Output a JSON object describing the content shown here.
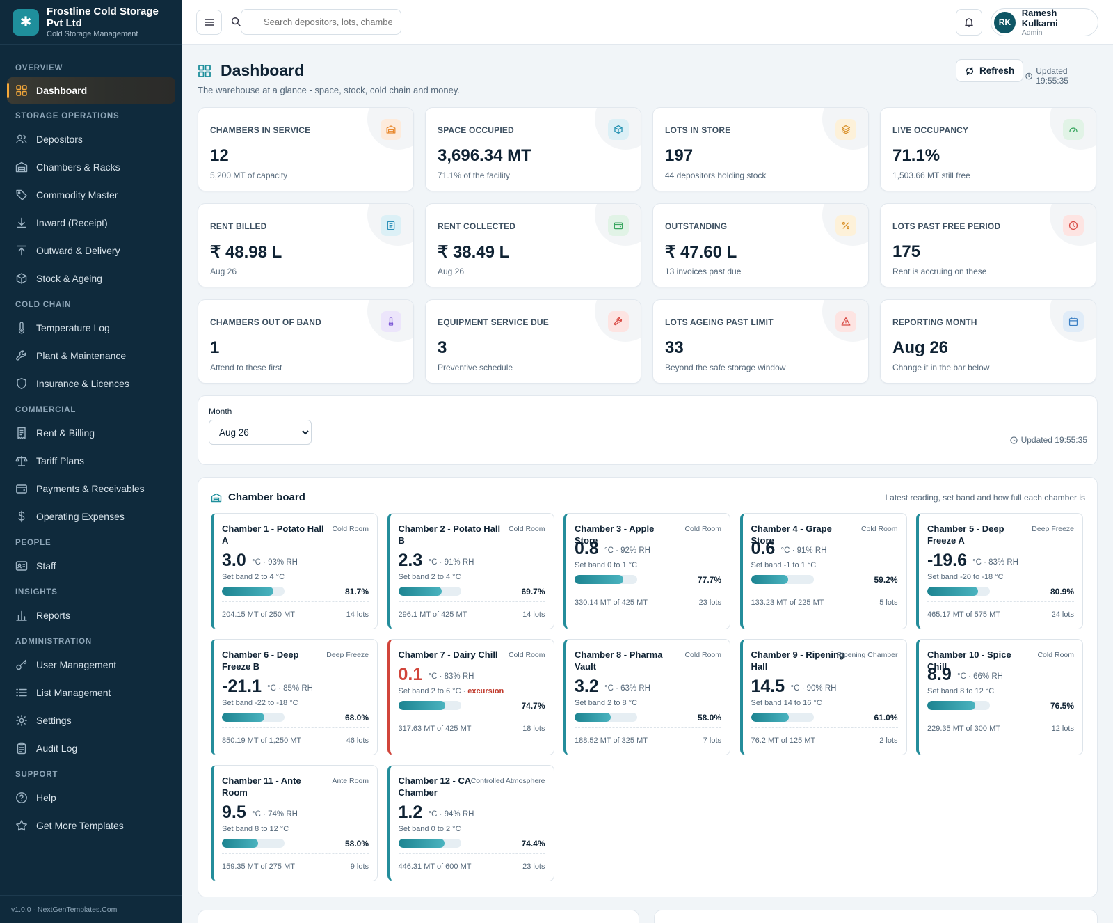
{
  "brand": {
    "name": "Frostline Cold Storage Pvt Ltd",
    "subtitle": "Cold Storage Management",
    "logo_icon": "snowflake-icon"
  },
  "sidebar": {
    "sections": [
      {
        "title": "OVERVIEW",
        "items": [
          {
            "label": "Dashboard",
            "icon": "grid-icon",
            "active": true
          }
        ]
      },
      {
        "title": "STORAGE OPERATIONS",
        "items": [
          {
            "label": "Depositors",
            "icon": "users-icon"
          },
          {
            "label": "Chambers & Racks",
            "icon": "warehouse-icon"
          },
          {
            "label": "Commodity Master",
            "icon": "tag-icon"
          },
          {
            "label": "Inward (Receipt)",
            "icon": "arrow-down-icon"
          },
          {
            "label": "Outward & Delivery",
            "icon": "arrow-up-icon"
          },
          {
            "label": "Stock & Ageing",
            "icon": "cube-icon"
          }
        ]
      },
      {
        "title": "COLD CHAIN",
        "items": [
          {
            "label": "Temperature Log",
            "icon": "thermometer-icon"
          },
          {
            "label": "Plant & Maintenance",
            "icon": "wrench-icon"
          },
          {
            "label": "Insurance & Licences",
            "icon": "shield-icon"
          }
        ]
      },
      {
        "title": "COMMERCIAL",
        "items": [
          {
            "label": "Rent & Billing",
            "icon": "receipt-icon"
          },
          {
            "label": "Tariff Plans",
            "icon": "scale-icon"
          },
          {
            "label": "Payments & Receivables",
            "icon": "wallet-icon"
          },
          {
            "label": "Operating Expenses",
            "icon": "dollar-icon"
          }
        ]
      },
      {
        "title": "PEOPLE",
        "items": [
          {
            "label": "Staff",
            "icon": "id-card-icon"
          }
        ]
      },
      {
        "title": "INSIGHTS",
        "items": [
          {
            "label": "Reports",
            "icon": "bar-chart-icon"
          }
        ]
      },
      {
        "title": "ADMINISTRATION",
        "items": [
          {
            "label": "User Management",
            "icon": "key-icon"
          },
          {
            "label": "List Management",
            "icon": "list-icon"
          },
          {
            "label": "Settings",
            "icon": "gear-icon"
          },
          {
            "label": "Audit Log",
            "icon": "clipboard-icon"
          }
        ]
      },
      {
        "title": "SUPPORT",
        "items": [
          {
            "label": "Help",
            "icon": "help-icon"
          },
          {
            "label": "Get More Templates",
            "icon": "star-icon"
          }
        ]
      }
    ],
    "footer": "v1.0.0 · NextGenTemplates.Com"
  },
  "topbar": {
    "search_placeholder": "Search depositors, lots, chambers",
    "user_name": "Ramesh Kulkarni",
    "user_role": "Admin",
    "user_initials": "RK"
  },
  "page": {
    "title": "Dashboard",
    "subtitle": "The warehouse at a glance - space, stock, cold chain and money.",
    "refresh_label": "Refresh",
    "updated": "Updated 19:55:35"
  },
  "kpis": [
    {
      "label": "CHAMBERS IN SERVICE",
      "value": "12",
      "note": "5,200 MT of capacity",
      "icon": "warehouse-icon",
      "color": "#e8892f",
      "bg": "#fdebdc"
    },
    {
      "label": "SPACE OCCUPIED",
      "value": "3,696.34 MT",
      "note": "71.1% of the facility",
      "icon": "cube-icon",
      "color": "#1f8fb0",
      "bg": "#dcf0f6"
    },
    {
      "label": "LOTS IN STORE",
      "value": "197",
      "note": "44 depositors holding stock",
      "icon": "layers-icon",
      "color": "#d9912a",
      "bg": "#fdf1d9"
    },
    {
      "label": "LIVE OCCUPANCY",
      "value": "71.1%",
      "note": "1,503.66 MT still free",
      "icon": "gauge-icon",
      "color": "#3aa760",
      "bg": "#e1f3e6"
    },
    {
      "label": "RENT BILLED",
      "value": "₹ 48.98 L",
      "note": "Aug 26",
      "icon": "invoice-icon",
      "color": "#2b8fb8",
      "bg": "#dcf0f6"
    },
    {
      "label": "RENT COLLECTED",
      "value": "₹ 38.49 L",
      "note": "Aug 26",
      "icon": "wallet-icon",
      "color": "#3aa760",
      "bg": "#e1f3e6"
    },
    {
      "label": "OUTSTANDING",
      "value": "₹ 47.60 L",
      "note": "13 invoices past due",
      "icon": "percent-icon",
      "color": "#d9912a",
      "bg": "#fdf1d9"
    },
    {
      "label": "LOTS PAST FREE PERIOD",
      "value": "175",
      "note": "Rent is accruing on these",
      "icon": "clock-icon",
      "color": "#d84a44",
      "bg": "#fde4e2"
    },
    {
      "label": "CHAMBERS OUT OF BAND",
      "value": "1",
      "note": "Attend to these first",
      "icon": "thermometer-icon",
      "color": "#7e5bd6",
      "bg": "#ece5fb"
    },
    {
      "label": "EQUIPMENT SERVICE DUE",
      "value": "3",
      "note": "Preventive schedule",
      "icon": "wrench-icon",
      "color": "#d84a44",
      "bg": "#fde4e2"
    },
    {
      "label": "LOTS AGEING PAST LIMIT",
      "value": "33",
      "note": "Beyond the safe storage window",
      "icon": "warning-icon",
      "color": "#d84a44",
      "bg": "#fde4e2"
    },
    {
      "label": "REPORTING MONTH",
      "value": "Aug 26",
      "note": "Change it in the bar below",
      "icon": "calendar-icon",
      "color": "#3a7fc4",
      "bg": "#e0ecf8"
    }
  ],
  "filter": {
    "month_label": "Month",
    "month_value": "Aug 26",
    "updated": "Updated 19:55:35"
  },
  "board": {
    "title": "Chamber board",
    "note": "Latest reading, set band and how full each chamber is",
    "chambers": [
      {
        "name": "Chamber 1 - Potato Hall A",
        "type": "Cold Room",
        "temp": "3.0",
        "unit": "°C · 93% RH",
        "band": "Set band 2 to 4 °C",
        "fill": 0.817,
        "pct": "81.7%",
        "mt": "204.15 MT of 250 MT",
        "lots": "14 lots",
        "lines": 2
      },
      {
        "name": "Chamber 2 - Potato Hall B",
        "type": "Cold Room",
        "temp": "2.3",
        "unit": "°C · 91% RH",
        "band": "Set band 2 to 4 °C",
        "fill": 0.697,
        "pct": "69.7%",
        "mt": "296.1 MT of 425 MT",
        "lots": "14 lots",
        "lines": 2
      },
      {
        "name": "Chamber 3 - Apple Store",
        "type": "Cold Room",
        "temp": "0.8",
        "unit": "°C · 92% RH",
        "band": "Set band 0 to 1 °C",
        "fill": 0.777,
        "pct": "77.7%",
        "mt": "330.14 MT of 425 MT",
        "lots": "23 lots",
        "lines": 1
      },
      {
        "name": "Chamber 4 - Grape Store",
        "type": "Cold Room",
        "temp": "0.6",
        "unit": "°C · 91% RH",
        "band": "Set band -1 to 1 °C",
        "fill": 0.592,
        "pct": "59.2%",
        "mt": "133.23 MT of 225 MT",
        "lots": "5 lots",
        "lines": 1
      },
      {
        "name": "Chamber 5 - Deep Freeze A",
        "type": "Deep Freeze",
        "temp": "-19.6",
        "unit": "°C · 83% RH",
        "band": "Set band -20 to -18 °C",
        "fill": 0.809,
        "pct": "80.9%",
        "mt": "465.17 MT of 575 MT",
        "lots": "24 lots",
        "lines": 2
      },
      {
        "name": "Chamber 6 - Deep Freeze B",
        "type": "Deep Freeze",
        "temp": "-21.1",
        "unit": "°C · 85% RH",
        "band": "Set band -22 to -18 °C",
        "fill": 0.68,
        "pct": "68.0%",
        "mt": "850.19 MT of 1,250 MT",
        "lots": "46 lots",
        "lines": 2
      },
      {
        "name": "Chamber 7 - Dairy Chill",
        "type": "Cold Room",
        "temp": "0.1",
        "unit": "°C · 83% RH",
        "band": "Set band 2 to 6 °C ·",
        "excursion": "excursion",
        "fill": 0.747,
        "pct": "74.7%",
        "mt": "317.63 MT of 425 MT",
        "lots": "18 lots",
        "lines": 1,
        "alert": true
      },
      {
        "name": "Chamber 8 - Pharma Vault",
        "type": "Cold Room",
        "temp": "3.2",
        "unit": "°C · 63% RH",
        "band": "Set band 2 to 8 °C",
        "fill": 0.58,
        "pct": "58.0%",
        "mt": "188.52 MT of 325 MT",
        "lots": "7 lots",
        "lines": 2
      },
      {
        "name": "Chamber 9 - Ripening Hall",
        "type": "Ripening Chamber",
        "temp": "14.5",
        "unit": "°C · 90% RH",
        "band": "Set band 14 to 16 °C",
        "fill": 0.61,
        "pct": "61.0%",
        "mt": "76.2 MT of 125 MT",
        "lots": "2 lots",
        "lines": 2
      },
      {
        "name": "Chamber 10 - Spice Chill",
        "type": "Cold Room",
        "temp": "8.9",
        "unit": "°C · 66% RH",
        "band": "Set band 8 to 12 °C",
        "fill": 0.765,
        "pct": "76.5%",
        "mt": "229.35 MT of 300 MT",
        "lots": "12 lots",
        "lines": 1
      },
      {
        "name": "Chamber 11 - Ante Room",
        "type": "Ante Room",
        "temp": "9.5",
        "unit": "°C · 74% RH",
        "band": "Set band 8 to 12 °C",
        "fill": 0.58,
        "pct": "58.0%",
        "mt": "159.35 MT of 275 MT",
        "lots": "9 lots",
        "lines": 2
      },
      {
        "name": "Chamber 12 - CA Chamber",
        "type": "Controlled Atmosphere",
        "temp": "1.2",
        "unit": "°C · 94% RH",
        "band": "Set band 0 to 2 °C",
        "fill": 0.744,
        "pct": "74.4%",
        "mt": "446.31 MT of 600 MT",
        "lots": "23 lots",
        "lines": 2
      }
    ]
  }
}
